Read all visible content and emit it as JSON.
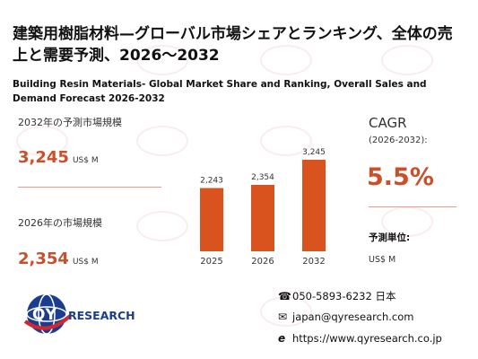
{
  "title_jp": "建築用樹脂材料—グローバル市場シェアとランキング、全体の売上と需要予測、2026〜2032",
  "title_en": "Building Resin Materials- Global Market Share and Ranking, Overall Sales and Demand Forecast 2026-2032",
  "stats": {
    "forecast_label": "2032年の予測市場規模",
    "forecast_value": "3,245",
    "forecast_unit": "US$ M",
    "current_label": "2026年の市場規模",
    "current_value": "2,354",
    "current_unit": "US$ M"
  },
  "cagr": {
    "label": "CAGR",
    "period": "(2026-2032):",
    "value": "5.5%"
  },
  "unit": {
    "label": "予測単位:",
    "value": "US$ M"
  },
  "logo": {
    "brand_q": "QY",
    "brand_rest": "RESEARCH"
  },
  "contact": {
    "phone": "050-5893-6232 日本",
    "email": "japan@qyresearch.com",
    "website": "https://www.qyresearch.co.jp"
  },
  "colors": {
    "bar": "#d9531e",
    "accent": "#c9502a",
    "logo_blue": "#1a3d8f",
    "logo_red": "#d6262b"
  },
  "chart_data": {
    "type": "bar",
    "categories": [
      "2025",
      "2026",
      "2032"
    ],
    "values": [
      2243,
      2354,
      3245
    ],
    "value_labels": [
      "2,243",
      "2,354",
      "3,245"
    ],
    "ylim": [
      0,
      3245
    ],
    "grid": false,
    "title": "",
    "xlabel": "",
    "ylabel": ""
  }
}
